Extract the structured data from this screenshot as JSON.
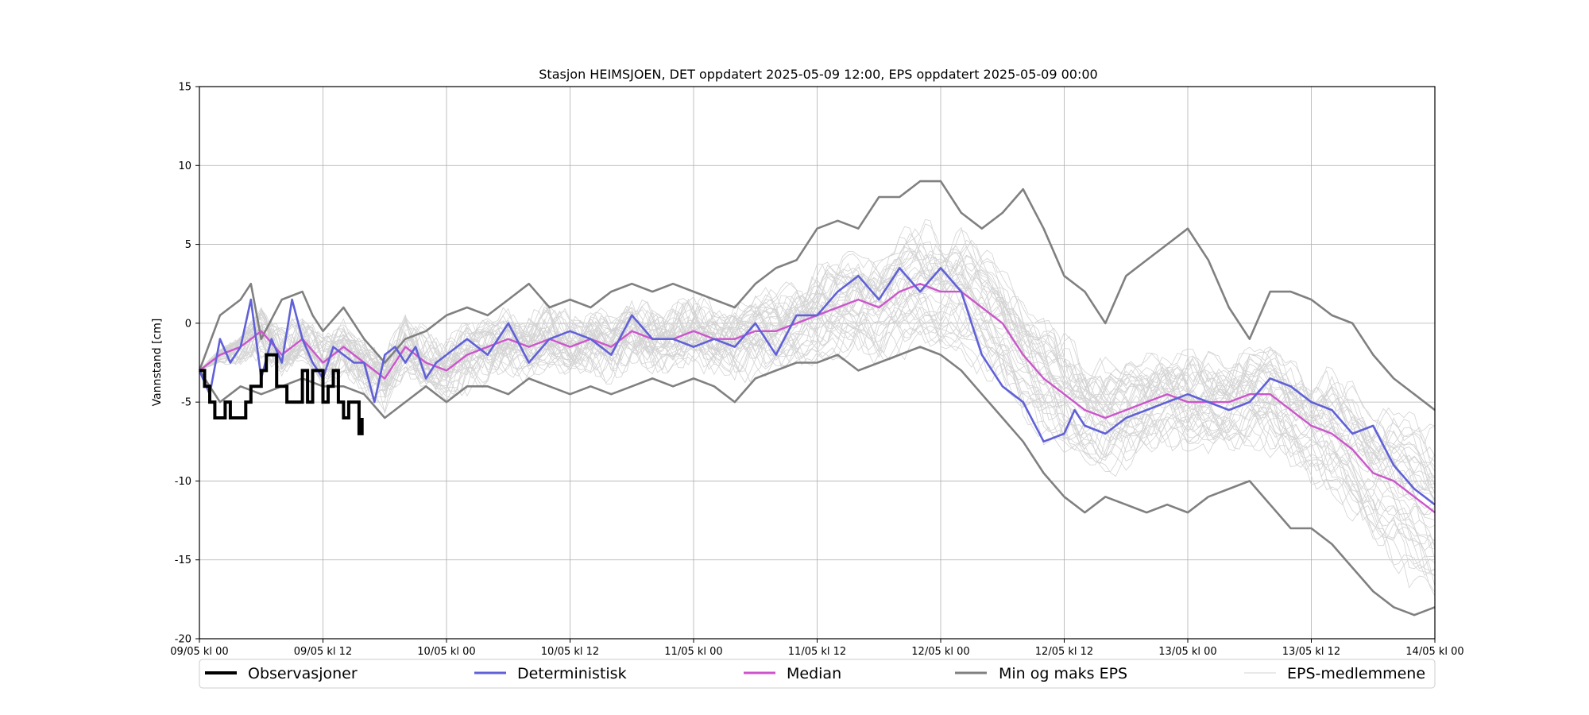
{
  "chart_data": {
    "type": "line",
    "title": "Stasjon HEIMSJOEN, DET oppdatert 2025-05-09 12:00, EPS oppdatert 2025-05-09 00:00",
    "xlabel": "",
    "ylabel": "Vannstand [cm]",
    "x_unit": "hours since 09/05 kl 00",
    "xlim": [
      0,
      120
    ],
    "ylim": [
      -20,
      15
    ],
    "yticks": [
      -20,
      -15,
      -10,
      -5,
      0,
      5,
      10,
      15
    ],
    "xticks": [
      {
        "x": 0,
        "label": "09/05 kl 00"
      },
      {
        "x": 12,
        "label": "09/05 kl 12"
      },
      {
        "x": 24,
        "label": "10/05 kl 00"
      },
      {
        "x": 36,
        "label": "10/05 kl 12"
      },
      {
        "x": 48,
        "label": "11/05 kl 00"
      },
      {
        "x": 60,
        "label": "11/05 kl 12"
      },
      {
        "x": 72,
        "label": "12/05 kl 00"
      },
      {
        "x": 84,
        "label": "12/05 kl 12"
      },
      {
        "x": 96,
        "label": "13/05 kl 00"
      },
      {
        "x": 108,
        "label": "13/05 kl 12"
      },
      {
        "x": 120,
        "label": "14/05 kl 00"
      }
    ],
    "grid": true,
    "legend_position": "bottom",
    "colors": {
      "observations": "#000000",
      "deterministic": "#6060d8",
      "median": "#cc55cc",
      "minmax": "#808080",
      "members": "#d3d3d3"
    },
    "series": [
      {
        "name": "Observasjoner",
        "key": "observations",
        "x": [
          0,
          0.5,
          1,
          1.5,
          2,
          2.5,
          3,
          3.5,
          4,
          4.5,
          5,
          5.5,
          6,
          6.5,
          7,
          7.5,
          8,
          8.5,
          9,
          9.5,
          10,
          10.5,
          11,
          11.5,
          12,
          12.5,
          13,
          13.5,
          14,
          14.5,
          15,
          15.5,
          15.8
        ],
        "y": [
          -3,
          -4,
          -5,
          -6,
          -6,
          -5,
          -6,
          -6,
          -6,
          -5,
          -4,
          -4,
          -3,
          -2,
          -2,
          -4,
          -4,
          -5,
          -5,
          -5,
          -3,
          -5,
          -3,
          -3,
          -5,
          -4,
          -3,
          -5,
          -6,
          -5,
          -5,
          -7,
          -6
        ]
      },
      {
        "name": "Deterministisk",
        "key": "deterministic",
        "x": [
          0,
          1,
          2,
          3,
          4,
          5,
          6,
          7,
          8,
          9,
          10,
          11,
          12,
          13,
          14,
          15,
          16,
          17,
          18,
          19,
          20,
          21,
          22,
          23,
          24,
          26,
          28,
          30,
          32,
          34,
          36,
          38,
          40,
          42,
          44,
          46,
          48,
          50,
          52,
          54,
          56,
          58,
          60,
          62,
          64,
          66,
          68,
          70,
          72,
          74,
          76,
          78,
          80,
          82,
          84,
          85,
          86,
          88,
          90,
          92,
          94,
          96,
          98,
          100,
          102,
          104,
          106,
          108,
          110,
          112,
          114,
          116,
          118,
          120
        ],
        "y": [
          -3,
          -4.5,
          -1,
          -2.5,
          -1.5,
          1.5,
          -3.5,
          -1,
          -2.5,
          1.5,
          -1,
          -2.5,
          -3.5,
          -1.5,
          -2,
          -2.5,
          -2.5,
          -5,
          -2,
          -1.5,
          -2.5,
          -1.5,
          -3.5,
          -2.5,
          -2,
          -1,
          -2,
          0,
          -2.5,
          -1,
          -0.5,
          -1,
          -2,
          0.5,
          -1,
          -1,
          -1.5,
          -1,
          -1.5,
          0,
          -2,
          0.5,
          0.5,
          2,
          3,
          1.5,
          3.5,
          2,
          3.5,
          2,
          -2,
          -4,
          -5,
          -7.5,
          -7,
          -5.5,
          -6.5,
          -7,
          -6,
          -5.5,
          -5,
          -4.5,
          -5,
          -5.5,
          -5,
          -3.5,
          -4,
          -5,
          -5.5,
          -7,
          -6.5,
          -9,
          -10.5,
          -11.5
        ]
      },
      {
        "name": "Median",
        "key": "median",
        "x": [
          0,
          2,
          4,
          6,
          8,
          10,
          12,
          14,
          16,
          18,
          20,
          22,
          24,
          26,
          28,
          30,
          32,
          34,
          36,
          38,
          40,
          42,
          44,
          46,
          48,
          50,
          52,
          54,
          56,
          58,
          60,
          62,
          64,
          66,
          68,
          70,
          72,
          74,
          76,
          78,
          80,
          82,
          84,
          86,
          88,
          90,
          92,
          94,
          96,
          98,
          100,
          102,
          104,
          106,
          108,
          110,
          112,
          114,
          116,
          118,
          120
        ],
        "y": [
          -3,
          -2,
          -1.5,
          -0.5,
          -2,
          -1,
          -2.5,
          -1.5,
          -2.5,
          -3.5,
          -1.5,
          -2.5,
          -3,
          -2,
          -1.5,
          -1,
          -1.5,
          -1,
          -1.5,
          -1,
          -1.5,
          -0.5,
          -1,
          -1,
          -0.5,
          -1,
          -1,
          -0.5,
          -0.5,
          0,
          0.5,
          1,
          1.5,
          1,
          2,
          2.5,
          2,
          2,
          1,
          0,
          -2,
          -3.5,
          -4.5,
          -5.5,
          -6,
          -5.5,
          -5,
          -4.5,
          -5,
          -5,
          -5,
          -4.5,
          -4.5,
          -5.5,
          -6.5,
          -7,
          -8,
          -9.5,
          -10,
          -11,
          -12
        ]
      },
      {
        "name": "Min og maks EPS",
        "key": "minmax",
        "upper": {
          "x": [
            0,
            2,
            4,
            5,
            6,
            8,
            10,
            11,
            12,
            14,
            16,
            18,
            20,
            22,
            24,
            26,
            28,
            30,
            32,
            34,
            36,
            38,
            40,
            42,
            44,
            46,
            48,
            50,
            52,
            54,
            56,
            58,
            60,
            62,
            64,
            66,
            68,
            70,
            72,
            74,
            76,
            78,
            80,
            82,
            84,
            86,
            88,
            90,
            92,
            94,
            96,
            98,
            100,
            102,
            104,
            106,
            108,
            110,
            112,
            114,
            116,
            118,
            120
          ],
          "y": [
            -3,
            0.5,
            1.5,
            2.5,
            -1,
            1.5,
            2,
            0.5,
            -0.5,
            1,
            -1,
            -2.5,
            -1,
            -0.5,
            0.5,
            1,
            0.5,
            1.5,
            2.5,
            1,
            1.5,
            1,
            2,
            2.5,
            2,
            2.5,
            2,
            1.5,
            1,
            2.5,
            3.5,
            4,
            6,
            6.5,
            6,
            8,
            8,
            9,
            9,
            7,
            6,
            7,
            8.5,
            6,
            3,
            2,
            0,
            3,
            4,
            5,
            6,
            4,
            1,
            -1,
            2,
            2,
            1.5,
            0.5,
            0,
            -2,
            -3.5,
            -4.5,
            -5.5
          ]
        },
        "lower": {
          "x": [
            0,
            2,
            4,
            6,
            8,
            10,
            12,
            14,
            16,
            18,
            20,
            22,
            24,
            26,
            28,
            30,
            32,
            34,
            36,
            38,
            40,
            42,
            44,
            46,
            48,
            50,
            52,
            54,
            56,
            58,
            60,
            62,
            64,
            66,
            68,
            70,
            72,
            74,
            76,
            78,
            80,
            82,
            84,
            86,
            88,
            90,
            92,
            94,
            96,
            98,
            100,
            102,
            104,
            106,
            108,
            110,
            112,
            114,
            116,
            118,
            120
          ],
          "y": [
            -3,
            -5,
            -4,
            -4.5,
            -4,
            -3.5,
            -4,
            -4,
            -4.5,
            -6,
            -5,
            -4,
            -5,
            -4,
            -4,
            -4.5,
            -3.5,
            -4,
            -4.5,
            -4,
            -4.5,
            -4,
            -3.5,
            -4,
            -3.5,
            -4,
            -5,
            -3.5,
            -3,
            -2.5,
            -2.5,
            -2,
            -3,
            -2.5,
            -2,
            -1.5,
            -2,
            -3,
            -4.5,
            -6,
            -7.5,
            -9.5,
            -11,
            -12,
            -11,
            -11.5,
            -12,
            -11.5,
            -12,
            -11,
            -10.5,
            -10,
            -11.5,
            -13,
            -13,
            -14,
            -15.5,
            -17,
            -18,
            -18.5,
            -18
          ]
        }
      },
      {
        "name": "EPS-medlemmene",
        "key": "members",
        "count": 40,
        "spread_at": [
          {
            "x": 0,
            "lo": -3,
            "hi": -3
          },
          {
            "x": 24,
            "lo": -3,
            "hi": -1
          },
          {
            "x": 48,
            "lo": -2,
            "hi": 0
          },
          {
            "x": 60,
            "lo": -1.5,
            "hi": 2.5
          },
          {
            "x": 72,
            "lo": -1,
            "hi": 5
          },
          {
            "x": 84,
            "lo": -6.5,
            "hi": -1
          },
          {
            "x": 96,
            "lo": -7,
            "hi": -3
          },
          {
            "x": 108,
            "lo": -9,
            "hi": -4
          },
          {
            "x": 120,
            "lo": -17,
            "hi": -8
          }
        ]
      }
    ]
  },
  "legend": {
    "observations": "Observasjoner",
    "deterministic": "Deterministisk",
    "median": "Median",
    "minmax": "Min og maks EPS",
    "members": "EPS-medlemmene"
  }
}
